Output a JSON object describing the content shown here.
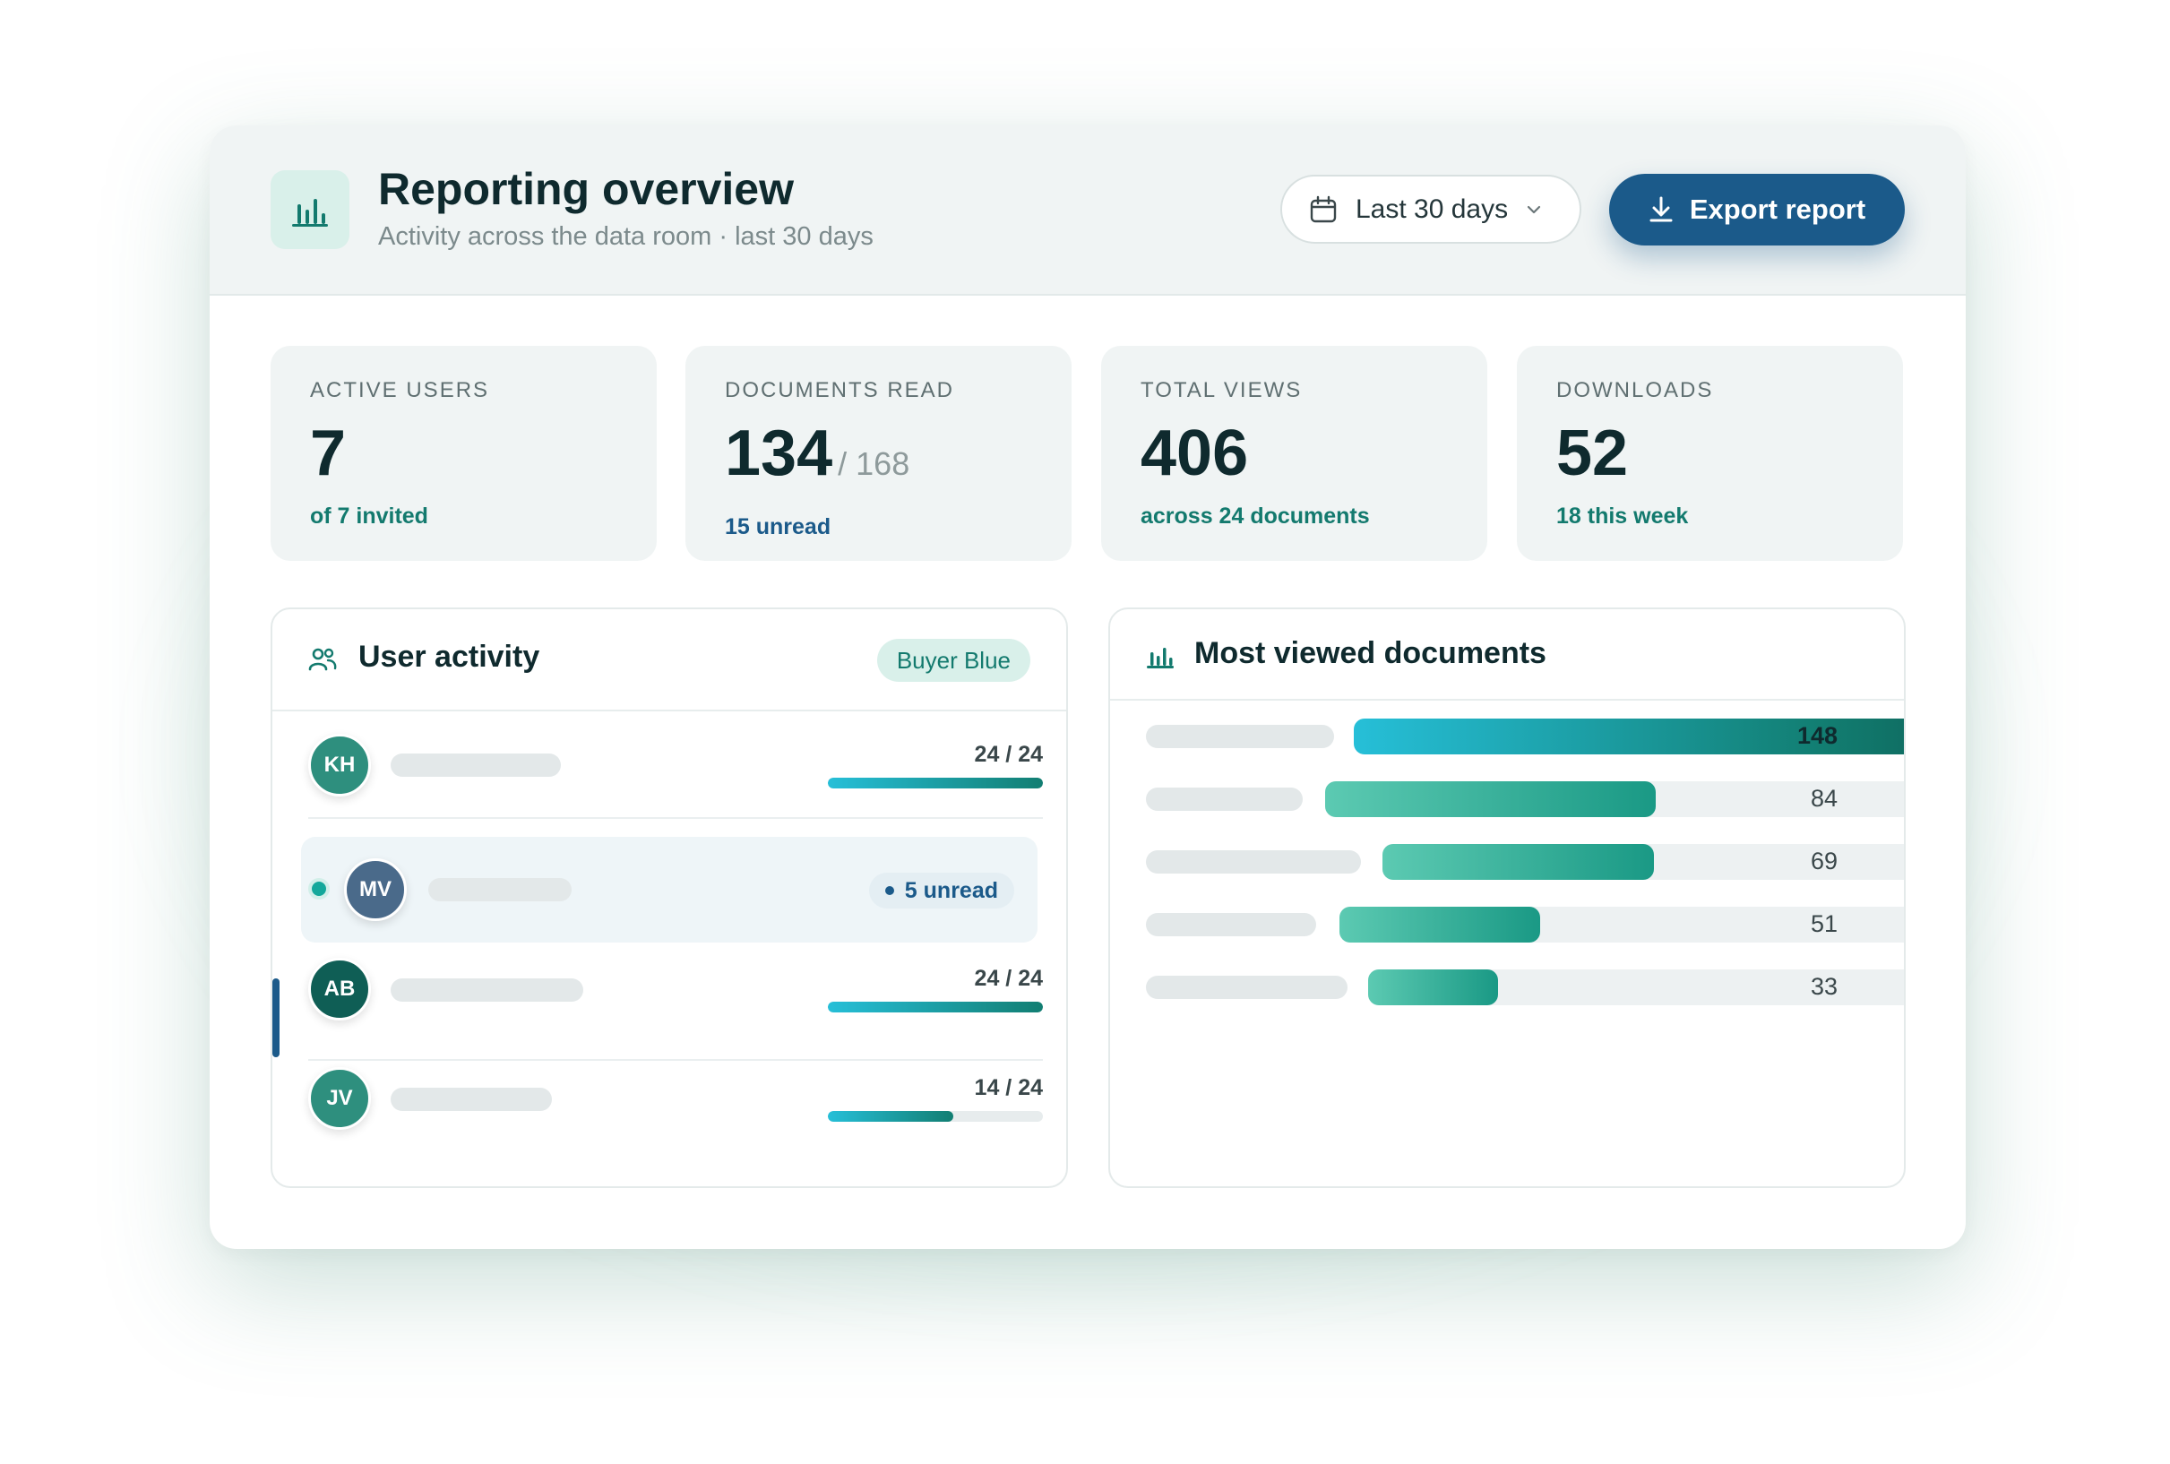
{
  "header": {
    "title": "Reporting overview",
    "subtitle": "Activity across the data room · last 30 days",
    "date_range": "Last 30 days",
    "export_label": "Export report"
  },
  "stats": [
    {
      "label": "ACTIVE USERS",
      "value": "7",
      "denominator": "",
      "note": "of 7 invited"
    },
    {
      "label": "DOCUMENTS READ",
      "value": "134",
      "denominator": "/ 168",
      "note": "15 unread"
    },
    {
      "label": "TOTAL VIEWS",
      "value": "406",
      "denominator": "",
      "note": "across 24 documents"
    },
    {
      "label": "DOWNLOADS",
      "value": "52",
      "denominator": "",
      "note": "18 this week"
    }
  ],
  "user_activity": {
    "title": "User activity",
    "badge": "Buyer Blue",
    "users": [
      {
        "initials": "KH",
        "progress_text": "24 / 24",
        "read": 24,
        "total": 24,
        "color": "#2e8f7e"
      },
      {
        "initials": "MV",
        "status": "5 unread",
        "color": "#4a6a8a"
      },
      {
        "initials": "AB",
        "progress_text": "24 / 24",
        "read": 24,
        "total": 24,
        "color": "#0f5e55"
      },
      {
        "initials": "JV",
        "progress_text": "14 / 24",
        "read": 14,
        "total": 24,
        "color": "#2e8f7e"
      }
    ]
  },
  "most_viewed": {
    "title": "Most viewed documents",
    "max": 148,
    "values": [
      148,
      84,
      69,
      51,
      33
    ]
  },
  "colors": {
    "accent_blue": "#1b5a8a",
    "accent_teal": "#137a6e",
    "bar_gradient_start": "#26bfd8",
    "bar_gradient_end": "#127e72"
  }
}
